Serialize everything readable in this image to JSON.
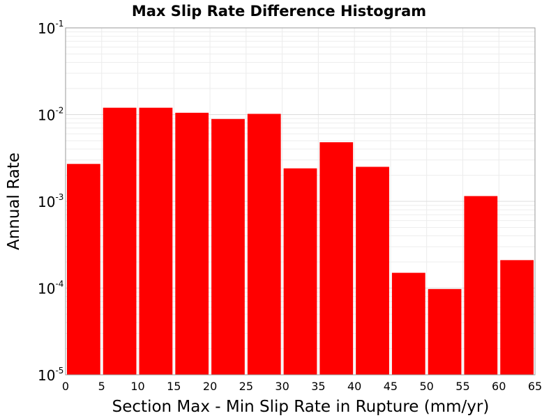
{
  "chart_data": {
    "type": "bar",
    "title": "Max Slip Rate Difference Histogram",
    "xlabel": "Section Max - Min Slip Rate in Rupture (mm/yr)",
    "ylabel": "Annual Rate",
    "y_scale": "log",
    "xlim": [
      0,
      65
    ],
    "ylim": [
      1e-05,
      0.1
    ],
    "grid": true,
    "bar_color": "#ff0000",
    "x_ticks": [
      "0",
      "5",
      "10",
      "15",
      "20",
      "25",
      "30",
      "35",
      "40",
      "45",
      "50",
      "55",
      "60",
      "65"
    ],
    "y_ticks": [
      {
        "base": "10",
        "exp": "-5"
      },
      {
        "base": "10",
        "exp": "-4"
      },
      {
        "base": "10",
        "exp": "-3"
      },
      {
        "base": "10",
        "exp": "-2"
      },
      {
        "base": "10",
        "exp": "-1"
      }
    ],
    "bins": [
      {
        "x0": 0,
        "x1": 5,
        "value": 0.0027
      },
      {
        "x0": 5,
        "x1": 10,
        "value": 0.012
      },
      {
        "x0": 10,
        "x1": 15,
        "value": 0.012
      },
      {
        "x0": 15,
        "x1": 20,
        "value": 0.0105
      },
      {
        "x0": 20,
        "x1": 25,
        "value": 0.0089
      },
      {
        "x0": 25,
        "x1": 30,
        "value": 0.0102
      },
      {
        "x0": 30,
        "x1": 35,
        "value": 0.0024
      },
      {
        "x0": 35,
        "x1": 40,
        "value": 0.0048
      },
      {
        "x0": 40,
        "x1": 45,
        "value": 0.0025
      },
      {
        "x0": 45,
        "x1": 50,
        "value": 0.00015
      },
      {
        "x0": 50,
        "x1": 55,
        "value": 9.75e-05
      },
      {
        "x0": 55,
        "x1": 60,
        "value": 0.00115
      },
      {
        "x0": 60,
        "x1": 65,
        "value": 0.00021
      }
    ]
  }
}
